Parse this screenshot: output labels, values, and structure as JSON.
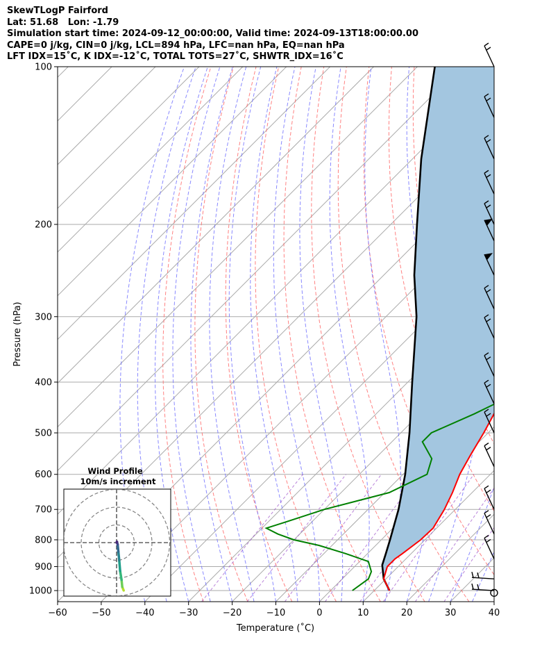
{
  "header": {
    "line1": "SkewTLogP Fairford",
    "line2": "Lat: 51.68   Lon: -1.79",
    "line3": "Simulation start time: 2024-09-12_00:00:00, Valid time: 2024-09-13T18:00:00.00",
    "line4": "CAPE=0 j/kg, CIN=0 j/kg, LCL=894 hPa, LFC=nan hPa, EQ=nan hPa",
    "line5": "LFT IDX=15˚C, K IDX=-12˚C, TOTAL TOTS=27˚C, SHWTR_IDX=16˚C"
  },
  "colors": {
    "temperature": "#ff0000",
    "dewpoint": "#008000",
    "parcel": "#000000",
    "cape_fill": "#a3c6e0",
    "dry_adiabat": "#ff6b6b",
    "moist_adiabat": "#6b6bff",
    "mixing_ratio": "#9b4fc9",
    "isotherm": "#aaaaaa",
    "isobar": "#aaaaaa"
  },
  "chart_data": {
    "type": "skew-t log-p",
    "xlabel": "Temperature (˚C)",
    "ylabel": "Pressure (hPa)",
    "xlim": [
      -60,
      40
    ],
    "ylim": [
      1050,
      100
    ],
    "y_scale": "log",
    "x_ticks": [
      "−60",
      "−50",
      "−40",
      "−30",
      "−20",
      "−10",
      "0",
      "10",
      "20",
      "30",
      "40"
    ],
    "y_ticks": [
      "100",
      "200",
      "300",
      "400",
      "500",
      "600",
      "700",
      "800",
      "900",
      "1000"
    ],
    "grid": true,
    "temperature_profile": {
      "pressure": [
        1000,
        950,
        900,
        870,
        850,
        800,
        760,
        700,
        650,
        600,
        550,
        500,
        450,
        400,
        350,
        300,
        280,
        250,
        230,
        210,
        200,
        180,
        150,
        130,
        110,
        100
      ],
      "temperature": [
        13.5,
        9.5,
        7.5,
        7.5,
        8.0,
        9.0,
        9.2,
        7.5,
        5.5,
        3.0,
        1.0,
        -1.0,
        -3.5,
        -6.5,
        -10.5,
        -15.0,
        -17.5,
        -21.0,
        -23.5,
        -26.5,
        -27.0,
        -30.0,
        -37.0,
        -42.0,
        -51.0,
        -56.0
      ]
    },
    "dewpoint_profile": {
      "pressure": [
        1000,
        950,
        920,
        880,
        850,
        820,
        800,
        780,
        760,
        740,
        700,
        650,
        600,
        560,
        520,
        500,
        460,
        420,
        400,
        380,
        360,
        340,
        320,
        300,
        270,
        250,
        230,
        210,
        190,
        175,
        165,
        140,
        115,
        100
      ],
      "dewpoint": [
        5.0,
        6.0,
        5.0,
        2.0,
        -5.0,
        -13.0,
        -20.0,
        -25.0,
        -29.0,
        -26.0,
        -20.0,
        -9.0,
        -4.5,
        -7.0,
        -13.0,
        -13.0,
        -7.5,
        -2.5,
        -3.0,
        -8.0,
        -11.0,
        -11.5,
        -12.5,
        -14.0,
        -16.0,
        -17.0,
        -18.5,
        -22.0,
        -24.0,
        -21.0,
        -26.0,
        -39.0,
        -38.0,
        -37.0
      ]
    },
    "parcel_profile": {
      "pressure": [
        1000,
        950,
        894,
        850,
        800,
        700,
        600,
        500,
        400,
        300,
        250,
        200,
        150,
        100
      ],
      "temperature": [
        13.5,
        9.5,
        6.0,
        4.2,
        2.0,
        -3.0,
        -9.5,
        -18.0,
        -29.0,
        -43.0,
        -53.0,
        -64.0,
        -78.0,
        -96.0
      ]
    },
    "wind_barbs": [
      {
        "pressure": 100,
        "kind": "barb"
      },
      {
        "pressure": 125,
        "kind": "barb"
      },
      {
        "pressure": 150,
        "kind": "barb"
      },
      {
        "pressure": 175,
        "kind": "barb"
      },
      {
        "pressure": 200,
        "kind": "barb"
      },
      {
        "pressure": 215,
        "kind": "pennant"
      },
      {
        "pressure": 250,
        "kind": "pennant"
      },
      {
        "pressure": 290,
        "kind": "barb"
      },
      {
        "pressure": 330,
        "kind": "barb"
      },
      {
        "pressure": 390,
        "kind": "barb"
      },
      {
        "pressure": 440,
        "kind": "barb"
      },
      {
        "pressure": 500,
        "kind": "barb"
      },
      {
        "pressure": 580,
        "kind": "barb"
      },
      {
        "pressure": 700,
        "kind": "barb"
      },
      {
        "pressure": 780,
        "kind": "barb"
      },
      {
        "pressure": 870,
        "kind": "barb"
      },
      {
        "pressure": 950,
        "kind": "barb"
      },
      {
        "pressure": 1000,
        "kind": "barb"
      },
      {
        "pressure": 1010,
        "kind": "calm"
      }
    ],
    "hodograph": {
      "title": "Wind Profile",
      "subtitle": "10m/s increment",
      "rings": [
        10,
        20,
        30
      ],
      "u": [
        4.0,
        3.2,
        2.8,
        2.0,
        1.5,
        1.0,
        0.6,
        0.2,
        0.0
      ],
      "v": [
        -27.0,
        -25.0,
        -21.0,
        -16.0,
        -10.0,
        -5.0,
        -1.0,
        0.5,
        0.0
      ]
    }
  }
}
